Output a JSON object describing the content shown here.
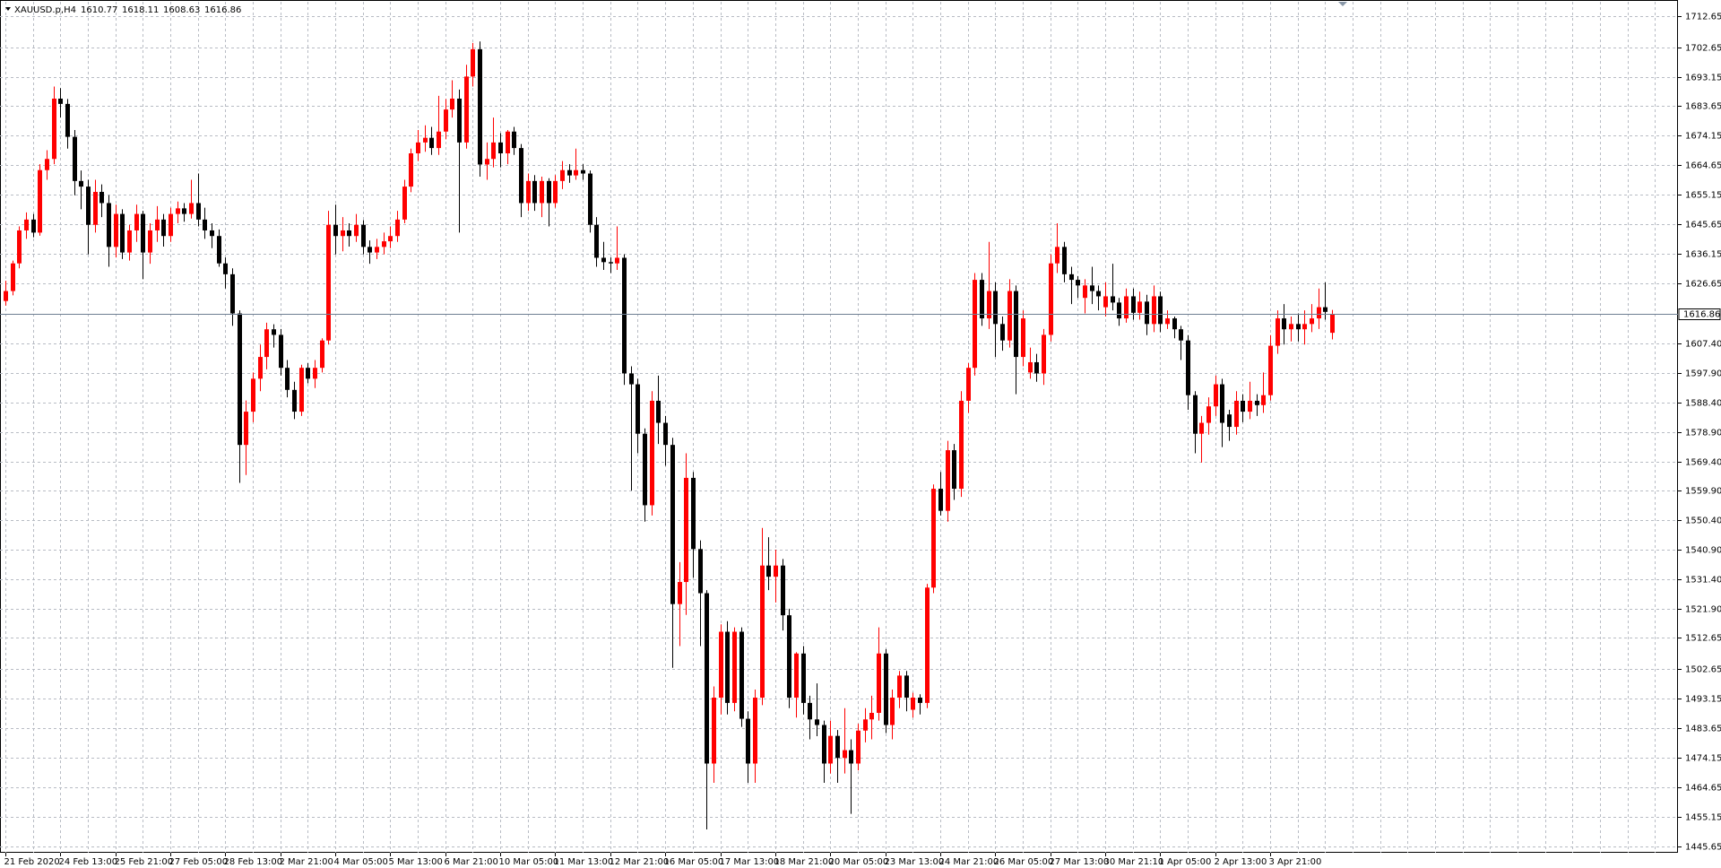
{
  "chart_data": {
    "type": "candlestick",
    "title": "XAUUSD.p,H4",
    "up_color": "#ff0000",
    "down_color": "#000000",
    "grid": true,
    "ylim": [
      1443.5,
      1717.25
    ],
    "yticks": [
      1712.65,
      1702.65,
      1693.15,
      1683.65,
      1674.15,
      1664.65,
      1655.15,
      1645.65,
      1636.15,
      1626.65,
      {
        "value": 1607.4,
        "label": "1607.40"
      },
      {
        "value": 1597.9,
        "label": "1597.90"
      },
      {
        "value": 1588.4,
        "label": "1588.40"
      },
      {
        "value": 1578.9,
        "label": "1578.90"
      },
      {
        "value": 1569.4,
        "label": "1569.40"
      },
      {
        "value": 1559.9,
        "label": "1559.90"
      },
      {
        "value": 1550.4,
        "label": "1550.40"
      },
      {
        "value": 1540.9,
        "label": "1540.90"
      },
      {
        "value": 1531.4,
        "label": "1531.40"
      },
      {
        "value": 1521.9,
        "label": "1521.90"
      },
      1512.65,
      1502.65,
      1493.15,
      1483.65,
      1474.15,
      1464.65,
      1455.15,
      1445.65
    ],
    "categories": [
      "21 Feb 2020",
      null,
      null,
      null,
      null,
      null,
      null,
      null,
      "24 Feb 13:00",
      null,
      null,
      null,
      null,
      null,
      null,
      null,
      "25 Feb 21:00",
      null,
      null,
      null,
      null,
      null,
      null,
      null,
      "27 Feb 05:00",
      null,
      null,
      null,
      null,
      null,
      null,
      null,
      "28 Feb 13:00",
      null,
      null,
      null,
      null,
      null,
      null,
      null,
      "2 Mar 21:00",
      null,
      null,
      null,
      null,
      null,
      null,
      null,
      "4 Mar 05:00",
      null,
      null,
      null,
      null,
      null,
      null,
      null,
      "5 Mar 13:00",
      null,
      null,
      null,
      null,
      null,
      null,
      null,
      "6 Mar 21:00",
      null,
      null,
      null,
      null,
      null,
      null,
      null,
      "10 Mar 05:00",
      null,
      null,
      null,
      null,
      null,
      null,
      null,
      "11 Mar 13:00",
      null,
      null,
      null,
      null,
      null,
      null,
      null,
      "12 Mar 21:00",
      null,
      null,
      null,
      null,
      null,
      null,
      null,
      "16 Mar 05:00",
      null,
      null,
      null,
      null,
      null,
      null,
      null,
      "17 Mar 13:00",
      null,
      null,
      null,
      null,
      null,
      null,
      null,
      "18 Mar 21:00",
      null,
      null,
      null,
      null,
      null,
      null,
      null,
      "20 Mar 05:00",
      null,
      null,
      null,
      null,
      null,
      null,
      null,
      "23 Mar 13:00",
      null,
      null,
      null,
      null,
      null,
      null,
      null,
      "24 Mar 21:00",
      null,
      null,
      null,
      null,
      null,
      null,
      null,
      "26 Mar 05:00",
      null,
      null,
      null,
      null,
      null,
      null,
      null,
      "27 Mar 13:00",
      null,
      null,
      null,
      null,
      null,
      null,
      null,
      "30 Mar 21:10",
      null,
      null,
      null,
      null,
      null,
      null,
      null,
      "1 Apr 05:00",
      null,
      null,
      null,
      null,
      null,
      null,
      null,
      "2 Apr 13:00",
      null,
      null,
      null,
      null,
      null,
      null,
      null,
      "3 Apr 21:00",
      null,
      null,
      null,
      null,
      null,
      null,
      null,
      null,
      null
    ],
    "ohlc": [
      [
        1621.0,
        1627.5,
        1619.5,
        1624.2
      ],
      [
        1624.2,
        1634.0,
        1622.8,
        1633.1
      ],
      [
        1633.1,
        1645.0,
        1631.5,
        1643.7
      ],
      [
        1643.7,
        1649.5,
        1641.0,
        1647.2
      ],
      [
        1647.2,
        1649.0,
        1641.5,
        1643.0
      ],
      [
        1643.0,
        1665.0,
        1642.0,
        1663.1
      ],
      [
        1663.1,
        1669.5,
        1660.0,
        1666.7
      ],
      [
        1666.7,
        1690.0,
        1665.0,
        1686.1
      ],
      [
        1686.1,
        1689.5,
        1680.0,
        1684.4
      ],
      [
        1684.4,
        1686.0,
        1670.0,
        1673.8
      ],
      [
        1673.8,
        1676.0,
        1655.0,
        1659.6
      ],
      [
        1659.6,
        1663.0,
        1650.5,
        1657.8
      ],
      [
        1657.8,
        1660.0,
        1636.0,
        1645.5
      ],
      [
        1645.5,
        1660.0,
        1643.0,
        1656.1
      ],
      [
        1656.1,
        1658.5,
        1648.0,
        1652.5
      ],
      [
        1652.5,
        1655.0,
        1632.0,
        1638.4
      ],
      [
        1638.4,
        1652.0,
        1635.0,
        1649.0
      ],
      [
        1649.0,
        1650.5,
        1634.5,
        1636.6
      ],
      [
        1636.6,
        1645.5,
        1634.0,
        1643.7
      ],
      [
        1643.7,
        1652.0,
        1640.0,
        1649.0
      ],
      [
        1649.0,
        1650.0,
        1628.0,
        1636.6
      ],
      [
        1636.6,
        1646.0,
        1633.0,
        1643.7
      ],
      [
        1643.7,
        1651.5,
        1640.0,
        1647.2
      ],
      [
        1647.2,
        1649.0,
        1638.5,
        1641.9
      ],
      [
        1641.9,
        1651.0,
        1640.0,
        1649.0
      ],
      [
        1649.0,
        1653.0,
        1646.0,
        1650.8
      ],
      [
        1650.8,
        1652.5,
        1646.5,
        1649.0
      ],
      [
        1649.0,
        1660.0,
        1647.5,
        1652.5
      ],
      [
        1652.5,
        1662.0,
        1645.0,
        1647.2
      ],
      [
        1647.2,
        1651.0,
        1641.0,
        1643.7
      ],
      [
        1643.7,
        1646.0,
        1638.0,
        1641.9
      ],
      [
        1641.9,
        1644.0,
        1632.0,
        1633.1
      ],
      [
        1633.1,
        1635.0,
        1625.0,
        1629.6
      ],
      [
        1629.6,
        1631.5,
        1613.0,
        1617.0
      ],
      [
        1617.0,
        1618.0,
        1562.5,
        1574.7
      ],
      [
        1574.7,
        1589.0,
        1565.0,
        1585.4
      ],
      [
        1585.4,
        1598.0,
        1582.0,
        1596.0
      ],
      [
        1596.0,
        1607.0,
        1592.0,
        1603.0
      ],
      [
        1603.0,
        1614.0,
        1599.0,
        1611.9
      ],
      [
        1611.9,
        1613.5,
        1606.0,
        1610.1
      ],
      [
        1610.1,
        1612.0,
        1597.0,
        1599.5
      ],
      [
        1599.5,
        1602.0,
        1590.0,
        1592.4
      ],
      [
        1592.4,
        1595.0,
        1583.0,
        1585.4
      ],
      [
        1585.4,
        1600.5,
        1584.0,
        1599.5
      ],
      [
        1599.5,
        1601.0,
        1594.5,
        1596.0
      ],
      [
        1596.0,
        1602.0,
        1593.0,
        1599.5
      ],
      [
        1599.5,
        1609.0,
        1598.0,
        1608.3
      ],
      [
        1608.3,
        1650.0,
        1607.0,
        1645.5
      ],
      [
        1645.5,
        1652.0,
        1636.0,
        1641.9
      ],
      [
        1641.9,
        1648.0,
        1637.0,
        1643.7
      ],
      [
        1643.7,
        1646.0,
        1638.5,
        1641.9
      ],
      [
        1641.9,
        1649.0,
        1640.0,
        1645.5
      ],
      [
        1645.5,
        1647.0,
        1636.0,
        1638.4
      ],
      [
        1638.4,
        1640.5,
        1633.0,
        1636.6
      ],
      [
        1636.6,
        1641.0,
        1634.5,
        1638.4
      ],
      [
        1638.4,
        1643.0,
        1636.0,
        1640.2
      ],
      [
        1640.2,
        1645.0,
        1638.0,
        1641.9
      ],
      [
        1641.9,
        1650.0,
        1640.0,
        1647.2
      ],
      [
        1647.2,
        1660.0,
        1646.0,
        1657.8
      ],
      [
        1657.8,
        1670.0,
        1656.0,
        1668.5
      ],
      [
        1668.5,
        1676.0,
        1666.0,
        1672.0
      ],
      [
        1672.0,
        1677.5,
        1669.0,
        1673.5
      ],
      [
        1673.5,
        1677.0,
        1668.0,
        1670.2
      ],
      [
        1670.2,
        1687.0,
        1668.0,
        1675.5
      ],
      [
        1675.5,
        1686.0,
        1673.0,
        1682.6
      ],
      [
        1682.6,
        1692.0,
        1680.0,
        1686.1
      ],
      [
        1686.1,
        1689.0,
        1643.0,
        1672.0
      ],
      [
        1672.0,
        1697.0,
        1670.0,
        1693.2
      ],
      [
        1693.2,
        1704.0,
        1690.0,
        1702.0
      ],
      [
        1702.0,
        1704.5,
        1661.0,
        1664.9
      ],
      [
        1664.9,
        1672.0,
        1660.0,
        1666.7
      ],
      [
        1666.7,
        1680.0,
        1664.0,
        1672.0
      ],
      [
        1672.0,
        1675.0,
        1664.0,
        1668.5
      ],
      [
        1668.5,
        1676.0,
        1665.0,
        1675.5
      ],
      [
        1675.5,
        1677.0,
        1668.0,
        1670.2
      ],
      [
        1670.2,
        1671.5,
        1648.0,
        1652.5
      ],
      [
        1652.5,
        1662.0,
        1650.0,
        1659.6
      ],
      [
        1659.6,
        1661.5,
        1650.0,
        1652.5
      ],
      [
        1652.5,
        1661.0,
        1648.0,
        1659.6
      ],
      [
        1659.6,
        1660.5,
        1645.0,
        1652.5
      ],
      [
        1652.5,
        1661.5,
        1651.0,
        1659.6
      ],
      [
        1659.6,
        1666.0,
        1657.0,
        1663.1
      ],
      [
        1663.1,
        1665.0,
        1659.0,
        1661.4
      ],
      [
        1661.4,
        1670.0,
        1660.0,
        1663.1
      ],
      [
        1663.1,
        1665.0,
        1660.0,
        1662.0
      ],
      [
        1662.0,
        1663.0,
        1643.0,
        1645.5
      ],
      [
        1645.5,
        1648.0,
        1632.0,
        1634.9
      ],
      [
        1634.9,
        1640.0,
        1631.0,
        1633.5
      ],
      [
        1633.5,
        1635.0,
        1630.0,
        1633.1
      ],
      [
        1633.1,
        1645.0,
        1631.0,
        1634.9
      ],
      [
        1634.9,
        1636.0,
        1594.0,
        1597.7
      ],
      [
        1597.7,
        1600.0,
        1560.0,
        1594.2
      ],
      [
        1594.2,
        1596.0,
        1572.0,
        1578.3
      ],
      [
        1578.3,
        1580.0,
        1550.0,
        1555.3
      ],
      [
        1555.3,
        1592.0,
        1552.0,
        1588.9
      ],
      [
        1588.9,
        1597.0,
        1575.0,
        1581.8
      ],
      [
        1581.8,
        1584.0,
        1568.0,
        1574.7
      ],
      [
        1574.7,
        1577.0,
        1503.0,
        1523.5
      ],
      [
        1523.5,
        1537.0,
        1510.0,
        1530.6
      ],
      [
        1530.6,
        1572.0,
        1520.0,
        1564.1
      ],
      [
        1564.1,
        1566.0,
        1532.0,
        1541.2
      ],
      [
        1541.2,
        1544.0,
        1510.0,
        1527.0
      ],
      [
        1527.0,
        1528.0,
        1451.0,
        1472.2
      ],
      [
        1472.2,
        1497.0,
        1466.0,
        1493.4
      ],
      [
        1493.4,
        1517.0,
        1488.0,
        1514.6
      ],
      [
        1514.6,
        1518.0,
        1488.0,
        1491.7
      ],
      [
        1491.7,
        1516.0,
        1489.0,
        1514.6
      ],
      [
        1514.6,
        1516.0,
        1484.0,
        1486.6
      ],
      [
        1486.6,
        1489.0,
        1466.0,
        1472.2
      ],
      [
        1472.2,
        1496.0,
        1466.0,
        1493.4
      ],
      [
        1493.4,
        1548.0,
        1491.0,
        1535.9
      ],
      [
        1535.9,
        1545.0,
        1528.0,
        1532.3
      ],
      [
        1532.3,
        1541.0,
        1524.0,
        1535.9
      ],
      [
        1535.9,
        1538.0,
        1515.0,
        1519.9
      ],
      [
        1519.9,
        1522.0,
        1490.0,
        1493.4
      ],
      [
        1493.4,
        1508.0,
        1487.0,
        1507.6
      ],
      [
        1507.6,
        1510.0,
        1488.0,
        1491.7
      ],
      [
        1491.7,
        1494.0,
        1480.0,
        1486.4
      ],
      [
        1486.4,
        1498.0,
        1481.0,
        1484.6
      ],
      [
        1484.6,
        1486.0,
        1466.0,
        1472.2
      ],
      [
        1472.2,
        1486.0,
        1469.0,
        1481.1
      ],
      [
        1481.1,
        1483.0,
        1466.0,
        1474.0
      ],
      [
        1474.0,
        1490.0,
        1469.0,
        1476.5
      ],
      [
        1476.5,
        1480.0,
        1456.0,
        1472.2
      ],
      [
        1472.2,
        1485.0,
        1470.0,
        1482.8
      ],
      [
        1482.8,
        1490.0,
        1479.0,
        1486.4
      ],
      [
        1486.4,
        1494.0,
        1480.0,
        1488.5
      ],
      [
        1488.5,
        1516.0,
        1486.0,
        1507.6
      ],
      [
        1507.6,
        1509.0,
        1482.0,
        1484.6
      ],
      [
        1484.6,
        1496.0,
        1480.0,
        1493.4
      ],
      [
        1493.4,
        1502.0,
        1490.0,
        1500.5
      ],
      [
        1500.5,
        1502.0,
        1489.0,
        1493.4
      ],
      [
        1489.5,
        1495.0,
        1487.0,
        1493.4
      ],
      [
        1493.4,
        1494.5,
        1488.0,
        1491.7
      ],
      [
        1491.7,
        1530.0,
        1490.0,
        1528.8
      ],
      [
        1528.8,
        1562.0,
        1527.0,
        1560.6
      ],
      [
        1560.6,
        1566.0,
        1552.0,
        1553.5
      ],
      [
        1553.5,
        1576.0,
        1550.0,
        1573.0
      ],
      [
        1573.0,
        1575.0,
        1557.0,
        1560.6
      ],
      [
        1560.6,
        1592.0,
        1558.0,
        1588.9
      ],
      [
        1588.9,
        1601.0,
        1585.0,
        1599.5
      ],
      [
        1599.5,
        1630.0,
        1597.0,
        1627.8
      ],
      [
        1627.8,
        1630.0,
        1613.0,
        1615.4
      ],
      [
        1615.4,
        1640.0,
        1612.0,
        1624.2
      ],
      [
        1624.2,
        1627.0,
        1603.0,
        1613.6
      ],
      [
        1613.6,
        1616.0,
        1605.0,
        1608.3
      ],
      [
        1608.3,
        1628.0,
        1606.0,
        1624.2
      ],
      [
        1624.2,
        1626.0,
        1591.0,
        1603.0
      ],
      [
        1603.0,
        1618.0,
        1600.0,
        1615.4
      ],
      [
        1598.0,
        1606.0,
        1596.0,
        1601.3
      ],
      [
        1601.3,
        1604.0,
        1595.0,
        1597.7
      ],
      [
        1597.7,
        1612.0,
        1594.0,
        1610.1
      ],
      [
        1610.1,
        1636.0,
        1608.0,
        1633.1
      ],
      [
        1633.1,
        1646.0,
        1630.0,
        1638.4
      ],
      [
        1638.4,
        1640.0,
        1627.0,
        1629.6
      ],
      [
        1629.6,
        1632.0,
        1620.0,
        1627.8
      ],
      [
        1627.8,
        1629.0,
        1622.0,
        1626.0
      ],
      [
        1622.0,
        1628.0,
        1617.0,
        1626.0
      ],
      [
        1626.0,
        1632.0,
        1620.0,
        1624.2
      ],
      [
        1624.2,
        1626.0,
        1618.0,
        1622.5
      ],
      [
        1619.0,
        1627.0,
        1616.0,
        1622.5
      ],
      [
        1622.5,
        1633.0,
        1618.0,
        1620.5
      ],
      [
        1620.5,
        1622.0,
        1613.0,
        1615.4
      ],
      [
        1615.4,
        1625.0,
        1614.0,
        1622.5
      ],
      [
        1622.5,
        1625.0,
        1615.0,
        1617.2
      ],
      [
        1617.2,
        1624.0,
        1615.0,
        1620.8
      ],
      [
        1620.8,
        1623.0,
        1610.0,
        1613.6
      ],
      [
        1613.6,
        1626.0,
        1611.0,
        1622.5
      ],
      [
        1622.5,
        1624.0,
        1611.0,
        1613.6
      ],
      [
        1613.6,
        1618.0,
        1612.0,
        1615.4
      ],
      [
        1615.4,
        1616.0,
        1609.0,
        1611.9
      ],
      [
        1611.9,
        1613.0,
        1602.0,
        1608.3
      ],
      [
        1608.3,
        1610.0,
        1586.0,
        1590.7
      ],
      [
        1590.7,
        1592.0,
        1572.0,
        1578.3
      ],
      [
        1578.3,
        1584.0,
        1569.0,
        1581.8
      ],
      [
        1581.8,
        1590.0,
        1578.0,
        1587.1
      ],
      [
        1587.1,
        1597.0,
        1584.0,
        1594.2
      ],
      [
        1594.2,
        1596.0,
        1574.0,
        1581.8
      ],
      [
        1584.5,
        1586.0,
        1576.0,
        1580.5
      ],
      [
        1580.5,
        1592.0,
        1578.0,
        1588.9
      ],
      [
        1588.9,
        1591.0,
        1582.0,
        1585.4
      ],
      [
        1585.4,
        1595.0,
        1583.0,
        1588.9
      ],
      [
        1588.9,
        1591.0,
        1584.0,
        1587.5
      ],
      [
        1587.5,
        1598.0,
        1585.0,
        1590.7
      ],
      [
        1590.7,
        1610.0,
        1589.0,
        1606.6
      ],
      [
        1606.6,
        1618.0,
        1604.0,
        1615.4
      ],
      [
        1615.4,
        1620.0,
        1607.0,
        1611.9
      ],
      [
        1611.9,
        1616.0,
        1608.0,
        1613.6
      ],
      [
        1613.6,
        1617.0,
        1608.0,
        1611.9
      ],
      [
        1611.9,
        1618.0,
        1607.0,
        1613.6
      ],
      [
        1613.6,
        1620.0,
        1611.0,
        1615.4
      ],
      [
        1615.4,
        1625.0,
        1612.0,
        1619.0
      ],
      [
        1619.0,
        1627.0,
        1615.0,
        1617.5
      ],
      [
        1610.77,
        1618.11,
        1608.63,
        1616.86
      ]
    ]
  }
}
